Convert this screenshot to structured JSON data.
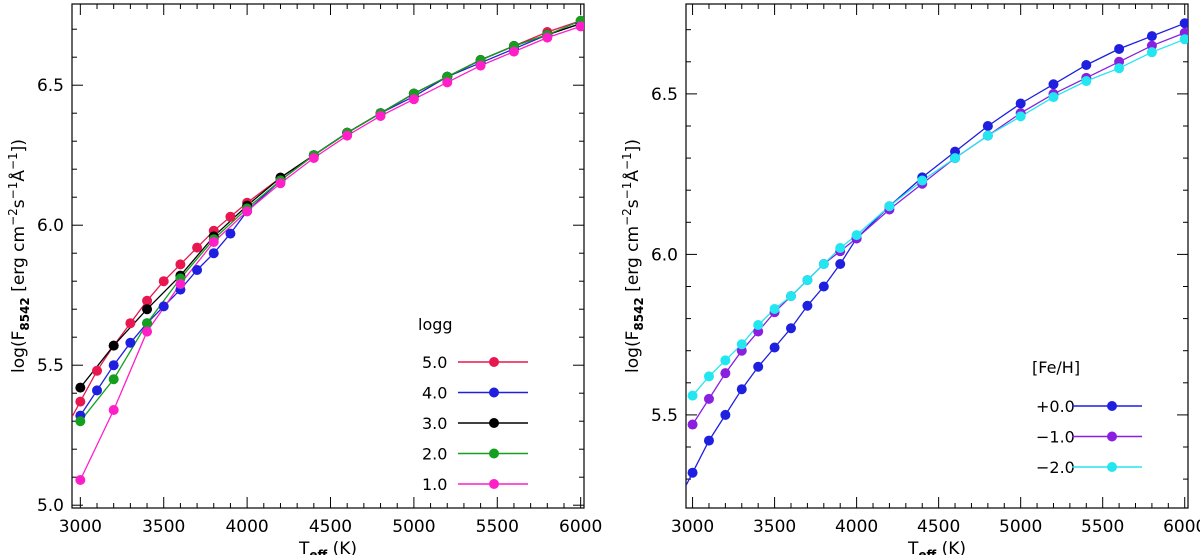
{
  "chart_data": [
    {
      "type": "line",
      "title": "",
      "xlabel": "T_eff (K)",
      "xlabel_main": "T",
      "xlabel_sub": "eff",
      "xlabel_rest": " (K)",
      "ylabel": "log(F_8542 [erg cm^-2 s^-1 Å^-1])",
      "ylabel_parts": {
        "a": "log(F",
        "b": "8542",
        "c": " [erg cm",
        "d": "−2",
        "e": "s",
        "f": "−1",
        "g": "Å",
        "h": "−1",
        "i": "])"
      },
      "xlim": [
        2950,
        6020
      ],
      "ylim": [
        4.99,
        6.79
      ],
      "xticks": [
        3000,
        3500,
        4000,
        4500,
        5000,
        5500,
        6000
      ],
      "yticks": [
        5.0,
        5.5,
        6.0,
        6.5
      ],
      "ytick_labels": [
        "5.0",
        "5.5",
        "6.0",
        "6.5"
      ],
      "legend_title": "logg",
      "legend_position": "bottom-right",
      "series": [
        {
          "name": "5.0",
          "color": "#e8174f",
          "x": [
            3000,
            3100,
            3200,
            3300,
            3400,
            3500,
            3600,
            3700,
            3800,
            3900,
            4000,
            4200,
            4400,
            4600,
            4800,
            5000,
            5200,
            5400,
            5600,
            5800,
            6000
          ],
          "y": [
            5.37,
            5.48,
            5.57,
            5.65,
            5.73,
            5.8,
            5.86,
            5.92,
            5.98,
            6.03,
            6.08,
            6.17,
            6.25,
            6.33,
            6.4,
            6.47,
            6.53,
            6.59,
            6.64,
            6.69,
            6.73
          ]
        },
        {
          "name": "4.0",
          "color": "#1f1fe0",
          "x": [
            3000,
            3100,
            3200,
            3300,
            3400,
            3500,
            3600,
            3700,
            3800,
            3900,
            4000,
            4200,
            4400,
            4600,
            4800,
            5000,
            5200,
            5400,
            5600,
            5800,
            6000
          ],
          "y": [
            5.32,
            5.41,
            5.5,
            5.58,
            5.65,
            5.71,
            5.77,
            5.84,
            5.9,
            5.97,
            6.05,
            6.16,
            6.25,
            6.33,
            6.4,
            6.46,
            6.53,
            6.58,
            6.63,
            6.68,
            6.72
          ]
        },
        {
          "name": "3.0",
          "color": "#000000",
          "x": [
            3000,
            3200,
            3400,
            3600,
            3800,
            4000,
            4200,
            4400,
            4600,
            4800,
            5000,
            5200,
            5400,
            5600,
            5800,
            6000
          ],
          "y": [
            5.42,
            5.57,
            5.7,
            5.82,
            5.96,
            6.07,
            6.17,
            6.25,
            6.33,
            6.4,
            6.47,
            6.53,
            6.59,
            6.64,
            6.68,
            6.72
          ]
        },
        {
          "name": "2.0",
          "color": "#14a01e",
          "x": [
            3000,
            3200,
            3400,
            3600,
            3800,
            4000,
            4200,
            4400,
            4600,
            4800,
            5000,
            5200,
            5400,
            5600,
            5800,
            6000
          ],
          "y": [
            5.3,
            5.45,
            5.65,
            5.81,
            5.95,
            6.06,
            6.16,
            6.25,
            6.33,
            6.4,
            6.47,
            6.53,
            6.59,
            6.64,
            6.68,
            6.73
          ]
        },
        {
          "name": "1.0",
          "color": "#ff1fc8",
          "x": [
            3000,
            3200,
            3400,
            3600,
            3800,
            4000,
            4200,
            4400,
            4600,
            4800,
            5000,
            5200,
            5400,
            5600,
            5800,
            6000
          ],
          "y": [
            5.09,
            5.34,
            5.62,
            5.79,
            5.94,
            6.05,
            6.15,
            6.24,
            6.32,
            6.39,
            6.45,
            6.51,
            6.57,
            6.62,
            6.67,
            6.71
          ]
        }
      ]
    },
    {
      "type": "line",
      "title": "",
      "xlabel": "T_eff (K)",
      "xlabel_main": "T",
      "xlabel_sub": "eff",
      "xlabel_rest": " (K)",
      "ylabel": "log(F_8542 [erg cm^-2 s^-1 Å^-1])",
      "ylabel_parts": {
        "a": "log(F",
        "b": "8542",
        "c": " [erg cm",
        "d": "−2",
        "e": "s",
        "f": "−1",
        "g": "Å",
        "h": "−1",
        "i": "])"
      },
      "xlim": [
        2960,
        6020
      ],
      "ylim": [
        5.21,
        6.78
      ],
      "xticks": [
        3000,
        3500,
        4000,
        4500,
        5000,
        5500,
        6000
      ],
      "yticks": [
        5.5,
        6.0,
        6.5
      ],
      "ytick_labels": [
        "5.5",
        "6.0",
        "6.5"
      ],
      "legend_title": "[Fe/H]",
      "legend_position": "bottom-right",
      "series": [
        {
          "name": "+0.0",
          "color": "#1f1fe0",
          "x": [
            3000,
            3100,
            3200,
            3300,
            3400,
            3500,
            3600,
            3700,
            3800,
            3900,
            4000,
            4200,
            4400,
            4600,
            4800,
            5000,
            5200,
            5400,
            5600,
            5800,
            6000
          ],
          "y": [
            5.32,
            5.42,
            5.5,
            5.58,
            5.65,
            5.71,
            5.77,
            5.84,
            5.9,
            5.97,
            6.05,
            6.15,
            6.24,
            6.32,
            6.4,
            6.47,
            6.53,
            6.59,
            6.64,
            6.68,
            6.72
          ]
        },
        {
          "name": "−1.0",
          "color": "#8a1fe0",
          "x": [
            3000,
            3100,
            3200,
            3300,
            3400,
            3500,
            3600,
            3700,
            3800,
            3900,
            4000,
            4200,
            4400,
            4600,
            4800,
            5000,
            5200,
            5400,
            5600,
            5800,
            6000
          ],
          "y": [
            5.47,
            5.55,
            5.63,
            5.7,
            5.76,
            5.82,
            5.87,
            5.92,
            5.97,
            6.01,
            6.05,
            6.14,
            6.22,
            6.3,
            6.37,
            6.44,
            6.5,
            6.55,
            6.6,
            6.65,
            6.69
          ]
        },
        {
          "name": "−2.0",
          "color": "#22e6f0",
          "x": [
            3000,
            3100,
            3200,
            3300,
            3400,
            3500,
            3600,
            3700,
            3800,
            3900,
            4000,
            4200,
            4400,
            4600,
            4800,
            5000,
            5200,
            5400,
            5600,
            5800,
            6000
          ],
          "y": [
            5.56,
            5.62,
            5.67,
            5.72,
            5.78,
            5.83,
            5.87,
            5.92,
            5.97,
            6.02,
            6.06,
            6.15,
            6.23,
            6.3,
            6.37,
            6.43,
            6.49,
            6.54,
            6.58,
            6.63,
            6.67
          ]
        }
      ]
    }
  ]
}
